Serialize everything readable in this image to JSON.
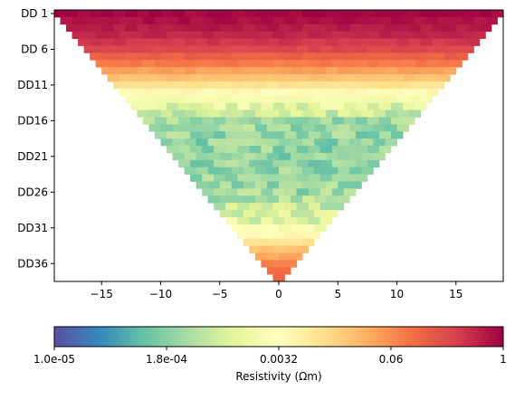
{
  "chart_data": {
    "type": "heatmap",
    "title": "",
    "xlabel": "",
    "ylabel": "",
    "xlim": [
      -19,
      19
    ],
    "ylim_rows": [
      1,
      38
    ],
    "x_ticks": [
      -15,
      -10,
      -5,
      0,
      5,
      10,
      15
    ],
    "y_ticks": [
      {
        "row": 1,
        "label": "DD 1"
      },
      {
        "row": 6,
        "label": "DD 6"
      },
      {
        "row": 11,
        "label": "DD11"
      },
      {
        "row": 16,
        "label": "DD16"
      },
      {
        "row": 21,
        "label": "DD21"
      },
      {
        "row": 26,
        "label": "DD26"
      },
      {
        "row": 31,
        "label": "DD31"
      },
      {
        "row": 36,
        "label": "DD36"
      }
    ],
    "rows": 38,
    "row_half_width_at_top": 19,
    "row_half_width_at_bottom": 0.5,
    "cell_width": 1,
    "value_scale": "log10",
    "value_profile_by_row": [
      {
        "row": 1,
        "log10_rho": -0.05
      },
      {
        "row": 4,
        "log10_rho": -0.3
      },
      {
        "row": 6,
        "log10_rho": -0.6
      },
      {
        "row": 8,
        "log10_rho": -1.1
      },
      {
        "row": 10,
        "log10_rho": -1.7
      },
      {
        "row": 12,
        "log10_rho": -2.4
      },
      {
        "row": 14,
        "log10_rho": -3.0
      },
      {
        "row": 16,
        "log10_rho": -3.6
      },
      {
        "row": 20,
        "log10_rho": -3.7
      },
      {
        "row": 26,
        "log10_rho": -3.6
      },
      {
        "row": 30,
        "log10_rho": -3.0
      },
      {
        "row": 32,
        "log10_rho": -2.4
      },
      {
        "row": 34,
        "log10_rho": -1.7
      },
      {
        "row": 36,
        "log10_rho": -1.2
      },
      {
        "row": 38,
        "log10_rho": -0.9
      }
    ],
    "colorbar": {
      "label": "Resistivity (Ωm)",
      "scale": "log",
      "range": [
        1e-05,
        1
      ],
      "colormap": "Spectral_r",
      "ticks": [
        {
          "value": 1e-05,
          "label": "1.0e-05"
        },
        {
          "value": 0.000178,
          "label": "1.8e-04"
        },
        {
          "value": 0.00316,
          "label": "0.0032"
        },
        {
          "value": 0.0562,
          "label": "0.06"
        },
        {
          "value": 1,
          "label": "1"
        }
      ],
      "colors": [
        "#5e4fa2",
        "#3288bd",
        "#66c2a5",
        "#abdda4",
        "#e6f598",
        "#ffffbf",
        "#fee08b",
        "#fdae61",
        "#f46d43",
        "#d53e4f",
        "#9e0142"
      ]
    }
  }
}
